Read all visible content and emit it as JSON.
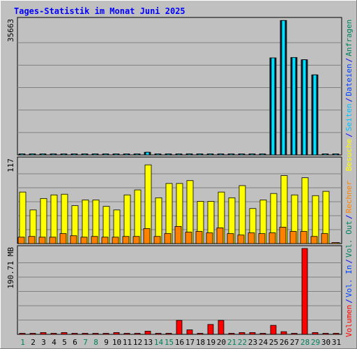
{
  "chart_data": {
    "type": "bar",
    "title": "Tages-Statistik im Monat Juni 2025",
    "days": [
      "1",
      "2",
      "3",
      "4",
      "5",
      "6",
      "7",
      "8",
      "9",
      "10",
      "11",
      "12",
      "13",
      "14",
      "15",
      "16",
      "17",
      "18",
      "19",
      "20",
      "21",
      "22",
      "23",
      "24",
      "25",
      "26",
      "27",
      "28",
      "29",
      "30",
      "31"
    ],
    "weekend_days": [
      1,
      7,
      8,
      14,
      15,
      21,
      22,
      28,
      29
    ],
    "panels": [
      {
        "id": "hits",
        "max_label": "35663",
        "ymax": 35663,
        "series": [
          {
            "key": "hits",
            "values": [
              0,
              0,
              0,
              0,
              0,
              0,
              0,
              0,
              0,
              0,
              0,
              0,
              700,
              0,
              0,
              0,
              300,
              0,
              0,
              150,
              0,
              0,
              0,
              0,
              25700,
              35600,
              25800,
              25200,
              21200,
              0,
              0
            ]
          },
          {
            "key": "files",
            "values": [
              0,
              0,
              0,
              0,
              0,
              0,
              0,
              0,
              0,
              0,
              0,
              0,
              700,
              0,
              0,
              0,
              300,
              0,
              0,
              150,
              0,
              0,
              0,
              0,
              25700,
              35600,
              25800,
              25200,
              21200,
              0,
              0
            ]
          },
          {
            "key": "pages",
            "values": [
              0,
              0,
              0,
              0,
              0,
              0,
              0,
              0,
              0,
              0,
              0,
              0,
              700,
              0,
              0,
              0,
              100,
              0,
              0,
              50,
              0,
              0,
              0,
              0,
              25700,
              35600,
              25800,
              25200,
              21200,
              0,
              0
            ]
          }
        ]
      },
      {
        "id": "visits",
        "max_label": "117",
        "ymax": 117,
        "series": [
          {
            "key": "visits",
            "values": [
              72,
              47,
              63,
              68,
              69,
              53,
              61,
              61,
              52,
              47,
              68,
              75,
              110,
              64,
              84,
              84,
              88,
              59,
              59,
              72,
              64,
              81,
              49,
              61,
              70,
              95,
              68,
              92,
              67,
              73,
              0
            ]
          },
          {
            "key": "sites",
            "values": [
              9,
              10,
              9,
              9,
              14,
              11,
              9,
              10,
              9,
              9,
              10,
              10,
              21,
              10,
              14,
              24,
              16,
              17,
              15,
              22,
              14,
              12,
              15,
              14,
              15,
              23,
              17,
              17,
              10,
              14,
              0
            ]
          }
        ]
      },
      {
        "id": "volume",
        "max_label": "190.71 MB",
        "ymax": 190.71,
        "series": [
          {
            "key": "kbytes",
            "values": [
              2,
              2,
              4,
              2,
              4,
              2,
              2,
              2,
              2,
              4,
              2,
              2,
              7,
              2,
              2,
              31,
              10,
              2,
              22,
              31,
              2,
              4,
              4,
              2,
              20,
              6,
              2,
              190.71,
              4,
              2,
              0
            ]
          }
        ]
      }
    ],
    "legend": {
      "top": [
        {
          "text": "Anfragen",
          "color": "#00805c"
        },
        {
          "text": "/",
          "color": "#0000ff"
        },
        {
          "text": "Dateien",
          "color": "#0040ff"
        },
        {
          "text": "/",
          "color": "#0000ff"
        },
        {
          "text": "Seiten",
          "color": "#00c0ff"
        },
        {
          "text": "/",
          "color": "#0000ff"
        },
        {
          "text": "Besuche",
          "color": "#ffff00"
        }
      ],
      "bottom": [
        {
          "text": "Rechner",
          "color": "#ff8000"
        },
        {
          "text": "/",
          "color": "#0000ff"
        },
        {
          "text": "Vol. Out",
          "color": "#00805c"
        },
        {
          "text": "/",
          "color": "#0000ff"
        },
        {
          "text": "Vol. In",
          "color": "#0040ff"
        },
        {
          "text": "/",
          "color": "#0000ff"
        },
        {
          "text": "Volumen",
          "color": "#ff0000"
        }
      ]
    }
  },
  "colors": {
    "title": "#0000ff",
    "hits": "#00805c",
    "files": "#0040ff",
    "pages": "#00e0ff",
    "visits": "#ffff00",
    "sites": "#ff8000",
    "kbytes": "#ff0000",
    "weekday": "#000000",
    "weekend": "#00805c"
  }
}
